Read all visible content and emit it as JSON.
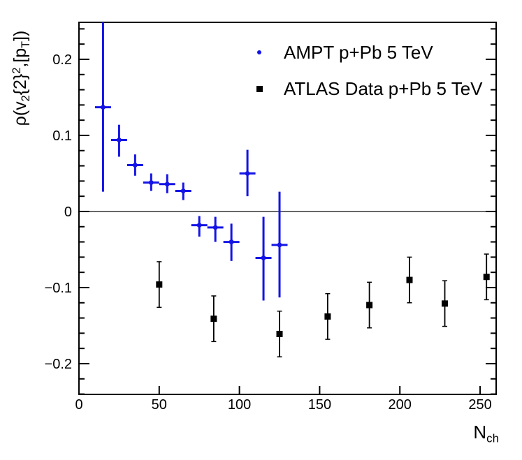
{
  "window": {
    "background": "#ffffff"
  },
  "colors": {
    "ampt_blue": "#1414e6",
    "atlas_black": "#000000",
    "zero_line": "#444444",
    "frame": "#000000"
  },
  "chart_data": {
    "type": "scatter",
    "title": "",
    "xlabel": "N_ch",
    "ylabel": "rho(v_2{2}^2,[p_T])",
    "xlabel_segments": [
      {
        "t": "N"
      },
      {
        "t": "ch",
        "m": "sub"
      }
    ],
    "ylabel_segments": [
      {
        "t": "ρ(v"
      },
      {
        "t": "2",
        "m": "sub"
      },
      {
        "t": "{2}"
      },
      {
        "t": "2",
        "m": "sup"
      },
      {
        "t": ",[p"
      },
      {
        "t": "T",
        "m": "sub"
      },
      {
        "t": "])"
      }
    ],
    "xlim": [
      0,
      260
    ],
    "ylim": [
      -0.2404,
      0.2486
    ],
    "grid": false,
    "zero_line_y": 0,
    "x_major_ticks": [
      {
        "v": 0,
        "label": "0"
      },
      {
        "v": 50,
        "label": "50"
      },
      {
        "v": 100,
        "label": "100"
      },
      {
        "v": 150,
        "label": "150"
      },
      {
        "v": 200,
        "label": "200"
      },
      {
        "v": 250,
        "label": "250"
      }
    ],
    "y_major_ticks": [
      {
        "v": -0.2,
        "label": "−0.2"
      },
      {
        "v": -0.1,
        "label": "−0.1"
      },
      {
        "v": 0,
        "label": "0"
      },
      {
        "v": 0.1,
        "label": "0.1"
      },
      {
        "v": 0.2,
        "label": "0.2"
      }
    ],
    "y_minor_step": 0.02,
    "legend_position": "top-right-inside",
    "series": [
      {
        "name": "AMPT p+Pb 5 TeV",
        "marker": "circle",
        "color": "#1414e6",
        "bin_halfwidth": 5,
        "points": [
          {
            "x": 15,
            "y": 0.137,
            "ey_low": 0.111,
            "ey_high": 0.112
          },
          {
            "x": 25,
            "y": 0.094,
            "ey_low": 0.022,
            "ey_high": 0.02
          },
          {
            "x": 35,
            "y": 0.061,
            "ey_low": 0.014,
            "ey_high": 0.014
          },
          {
            "x": 45,
            "y": 0.038,
            "ey_low": 0.011,
            "ey_high": 0.012
          },
          {
            "x": 55,
            "y": 0.036,
            "ey_low": 0.012,
            "ey_high": 0.013
          },
          {
            "x": 65,
            "y": 0.027,
            "ey_low": 0.012,
            "ey_high": 0.011
          },
          {
            "x": 75,
            "y": -0.018,
            "ey_low": 0.015,
            "ey_high": 0.012
          },
          {
            "x": 85,
            "y": -0.021,
            "ey_low": 0.019,
            "ey_high": 0.014
          },
          {
            "x": 95,
            "y": -0.04,
            "ey_low": 0.025,
            "ey_high": 0.024
          },
          {
            "x": 105,
            "y": 0.05,
            "ey_low": 0.03,
            "ey_high": 0.031
          },
          {
            "x": 115,
            "y": -0.061,
            "ey_low": 0.056,
            "ey_high": 0.054
          },
          {
            "x": 125,
            "y": -0.044,
            "ey_low": 0.069,
            "ey_high": 0.07
          }
        ]
      },
      {
        "name": "ATLAS Data p+Pb 5 TeV",
        "marker": "square",
        "color": "#000000",
        "points": [
          {
            "x": 50,
            "y": -0.096,
            "ey": 0.03
          },
          {
            "x": 84,
            "y": -0.141,
            "ey": 0.03
          },
          {
            "x": 125,
            "y": -0.161,
            "ey": 0.03
          },
          {
            "x": 155,
            "y": -0.138,
            "ey": 0.03
          },
          {
            "x": 181,
            "y": -0.123,
            "ey": 0.03
          },
          {
            "x": 206,
            "y": -0.09,
            "ey": 0.03
          },
          {
            "x": 228,
            "y": -0.121,
            "ey": 0.03
          },
          {
            "x": 254,
            "y": -0.086,
            "ey": 0.03
          }
        ]
      }
    ]
  }
}
